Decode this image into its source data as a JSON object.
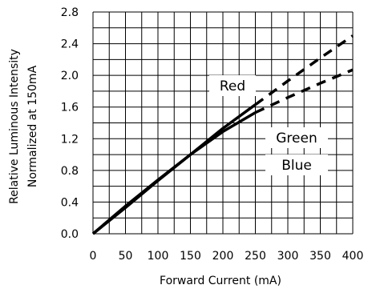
{
  "chart_data": {
    "type": "line",
    "title": "",
    "xlabel": "Forward Current (mA)",
    "ylabel_line1": "Relative Luminous Intensity",
    "ylabel_line2": "Normalized at 150mA",
    "xlim": [
      0,
      400
    ],
    "ylim": [
      0,
      2.8
    ],
    "x_ticks": [
      "0",
      "50",
      "100",
      "150",
      "200",
      "250",
      "300",
      "350",
      "400"
    ],
    "y_ticks": [
      "0.0",
      "0.4",
      "0.8",
      "1.2",
      "1.6",
      "2.0",
      "2.4",
      "2.8"
    ],
    "x_tick_values": [
      0,
      50,
      100,
      150,
      200,
      250,
      300,
      350,
      400
    ],
    "y_tick_values": [
      0,
      0.4,
      0.8,
      1.2,
      1.6,
      2.0,
      2.4,
      2.8
    ],
    "grid": true,
    "grid_x_step": 25,
    "grid_y_step": 0.2,
    "series_labels": {
      "red": "Red",
      "green": "Green",
      "blue": "Blue"
    },
    "series": [
      {
        "label_ref": "red",
        "style": "solid",
        "x": [
          0,
          50,
          100,
          150,
          200,
          250
        ],
        "y": [
          0,
          0.33,
          0.67,
          1.0,
          1.33,
          1.63
        ]
      },
      {
        "label_ref": "red",
        "style": "dashed",
        "x": [
          250,
          300,
          350,
          400
        ],
        "y": [
          1.63,
          1.93,
          2.22,
          2.5
        ]
      },
      {
        "label_ref": "green-blue",
        "style": "solid",
        "x": [
          0,
          50,
          100,
          150,
          200,
          250
        ],
        "y": [
          0,
          0.35,
          0.68,
          1.0,
          1.29,
          1.53
        ]
      },
      {
        "label_ref": "green-blue",
        "style": "dashed",
        "x": [
          250,
          300,
          350,
          400
        ],
        "y": [
          1.53,
          1.72,
          1.9,
          2.07
        ]
      }
    ],
    "colors": {
      "line": "#000000",
      "grid": "#000000",
      "background": "#ffffff"
    }
  }
}
